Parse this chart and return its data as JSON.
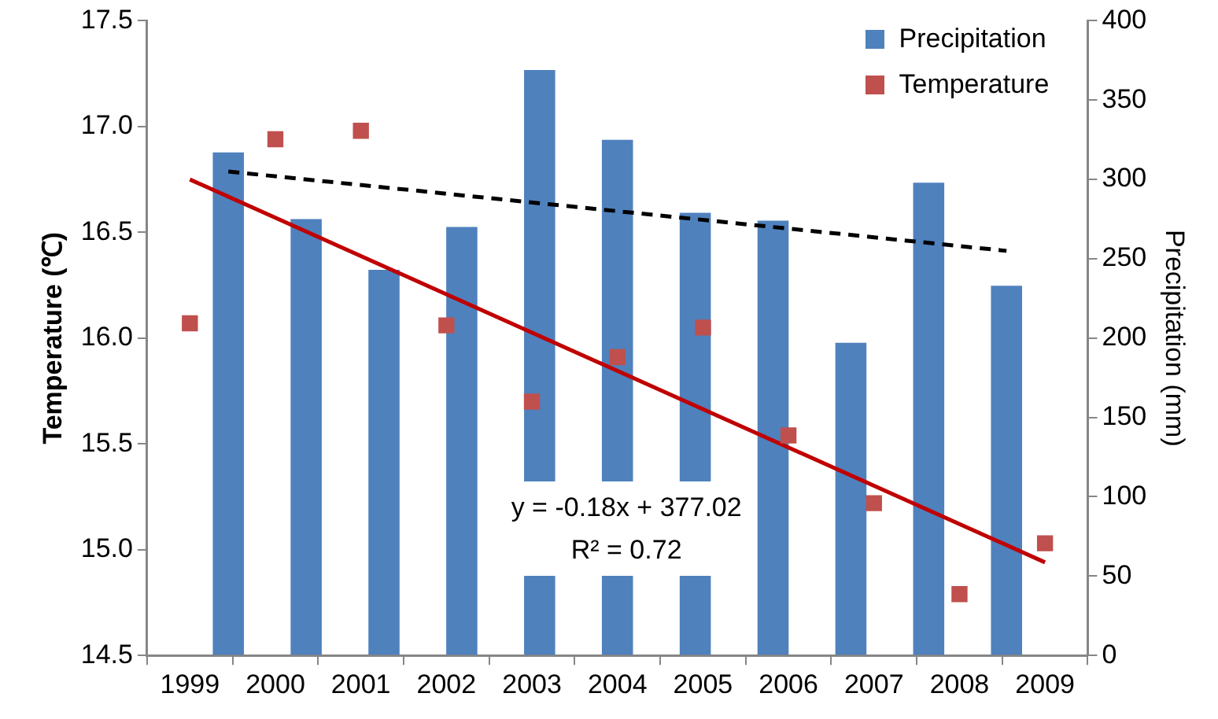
{
  "chart_data": {
    "type": "bar",
    "ylabel": "Temperature (℃)",
    "y2label": "Precipitation (mm)",
    "series": [
      {
        "name": "Precipitation",
        "axis": "y2",
        "x": [
          1999.45,
          2000.36,
          2001.27,
          2002.18,
          2003.09,
          2004.0,
          2004.91,
          2005.82,
          2006.73,
          2007.64,
          2008.55
        ],
        "color": "#4f81bd",
        "values": [
          317,
          275,
          243,
          270,
          369,
          325,
          279,
          274,
          197,
          298,
          233
        ]
      },
      {
        "name": "Temperature",
        "type": "scatter",
        "marker": "square",
        "color": "#c0504d",
        "x": [
          1999,
          2000,
          2001,
          2002,
          2003,
          2004,
          2005,
          2006,
          2007,
          2008,
          2009
        ],
        "values": [
          16.07,
          16.94,
          16.98,
          16.06,
          15.7,
          15.91,
          16.05,
          15.54,
          15.22,
          14.79,
          15.03
        ]
      },
      {
        "type": "line",
        "marker": "none",
        "line_style": "solid",
        "color": "#c00000",
        "x": [
          1999,
          2009
        ],
        "values": [
          16.75,
          14.94
        ]
      },
      {
        "type": "line",
        "axis": "y2",
        "marker": "none",
        "line_style": "dashed",
        "color": "#000000",
        "x": [
          1999.45,
          2008.55
        ],
        "values": [
          305,
          255
        ]
      }
    ],
    "xlim": [
      1999,
      2009
    ],
    "xticks": [
      1999,
      2000,
      2001,
      2002,
      2003,
      2004,
      2005,
      2006,
      2007,
      2008,
      2009
    ],
    "ylim": [
      14.5,
      17.5
    ],
    "yticks": [
      14.5,
      {
        "value": 15,
        "label": "15.0"
      },
      15.5,
      {
        "value": 16,
        "label": "16.0"
      },
      16.5,
      {
        "value": 17,
        "label": "17.0"
      },
      17.5
    ],
    "y2lim": [
      0,
      400
    ],
    "y2ticks": [
      0,
      50,
      100,
      150,
      200,
      250,
      300,
      350,
      400
    ],
    "legend": "top right",
    "grid": false,
    "annotations": [
      "y = -0.18x + 377.02",
      "R² = 0.72"
    ]
  }
}
